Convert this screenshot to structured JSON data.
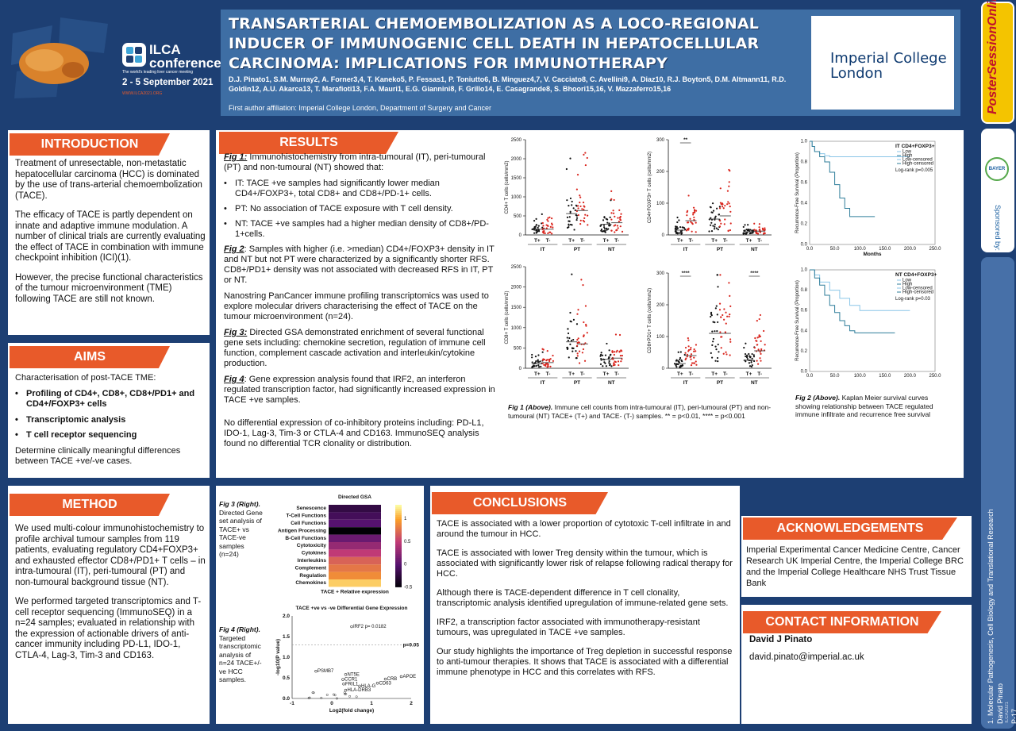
{
  "header": {
    "conference_name": "ILCA conference",
    "conference_tagline": "The world's leading liver cancer meeting",
    "conference_dates": "2 - 5 September 2021",
    "conference_web": "WWW.ILCA2021.ORG",
    "title": "TRANSARTERIAL CHEMOEMBOLIZATION AS A LOCO-REGIONAL INDUCER OF IMMUNOGENIC CELL DEATH IN HEPATOCELLULAR CARCINOMA: IMPLICATIONS FOR IMMUNOTHERAPY",
    "authors": "D.J. Pinato1, S.M. Murray2, A. Forner3,4, T. Kaneko5, P. Fessas1, P. Toniutto6, B. Minguez4,7, V. Cacciato8, C. Avellini9, A. Diaz10, R.J. Boyton5, D.M. Altmann11, R.D. Goldin12, A.U. Akarca13, T. Marafioti13, F.A. Mauri1, E.G. Giannini8, F. Grillo14, E. Casagrande8, S. Bhoori15,16, V. Mazzaferro15,16",
    "affiliation": "First author affiliation: Imperial College London, Department of Surgery and Cancer",
    "institution_line1": "Imperial College",
    "institution_line2": "London"
  },
  "side": {
    "brand": "PosterSessionOnline",
    "sponsor_label": "Sponsored by:",
    "sponsor_name": "BAYER",
    "track_line1": "1. Molecular Pathogenesis, Cell Biology and Translational Research",
    "track_line2": "David Pinato",
    "poster_id": "P-17",
    "event_code": "ILCA2021"
  },
  "introduction": {
    "heading": "INTRODUCTION",
    "p1": "Treatment of unresectable, non-metastatic hepatocellular carcinoma (HCC) is dominated by the use of trans-arterial chemoembolization (TACE).",
    "p2": "The efficacy of TACE is partly dependent on innate and adaptive immune modulation. A number of clinical trials are currently evaluating the effect of TACE in combination with immune checkpoint inhibition (ICI)(1).",
    "p3": "However, the precise functional characteristics of the tumour microenvironment (TME) following TACE are still not known."
  },
  "aims": {
    "heading": "AIMS",
    "intro": "Characterisation of post-TACE TME:",
    "items": [
      "Profiling of CD4+, CD8+, CD8+/PD1+ and CD4+/FOXP3+ cells",
      "Transcriptomic analysis",
      "T cell receptor sequencing"
    ],
    "outro": "Determine clinically meaningful differences between TACE +ve/-ve cases."
  },
  "method": {
    "heading": "METHOD",
    "p1": "We used multi-colour immunohistochemistry to profile archival tumour samples from 119 patients, evaluating regulatory CD4+FOXP3+ and exhausted effector CD8+/PD1+ T cells – in intra-tumoural (IT), peri-tumoural (PT) and non-tumoural background tissue (NT).",
    "p2": "We performed targeted transcriptomics and T-cell receptor sequencing (ImmunoSEQ) in a n=24 samples; evaluated in relationship with the expression of actionable drivers of anti-cancer immunity including PD-L1, IDO-1, CTLA-4, Lag-3, Tim-3 and CD163."
  },
  "results": {
    "heading": "RESULTS",
    "fig1_lead": "Fig 1:",
    "fig1_text": "Immunohistochemistry from intra-tumoural (IT), peri-tumoural (PT) and non-tumoural (NT) showed that:",
    "bullets": [
      "IT: TACE +ve samples had significantly lower median CD4+/FOXP3+, total CD8+ and CD8+/PD-1+ cells.",
      "PT: No association of TACE exposure with T cell density.",
      "NT: TACE +ve samples had a higher median density of CD8+/PD-1+cells."
    ],
    "fig2_lead": "Fig 2",
    "fig2_text": ": Samples with higher (i.e. >median) CD4+/FOXP3+ density in IT and NT but not PT were characterized by a significantly shorter RFS. CD8+/PD1+ density was not associated with decreased RFS in IT, PT or NT.",
    "nanostring": "Nanostring PanCancer immune profiling transcriptomics was used to explore molecular drivers characterising the effect of TACE on the tumour microenvironment (n=24).",
    "fig3_lead": "Fig 3:",
    "fig3_text": "Directed GSA demonstrated enrichment of several functional gene sets including: chemokine secretion, regulation of immune cell function, complement cascade activation and interleukin/cytokine production.",
    "fig4_lead": "Fig 4",
    "fig4_text": ": Gene expression analysis found that IRF2, an interferon regulated transcription factor, had significantly increased expression in TACE +ve samples.",
    "no_diff": "No differential expression of co-inhibitory proteins including: PD-L1, IDO-1, Lag-3, Tim-3 or CTLA-4 and CD163. ImmunoSEQ analysis found no differential TCR clonality or distribution.",
    "fig1_caption_lead": "Fig 1 (Above).",
    "fig1_caption": "Immune cell counts from intra-tumoural (IT), peri-tumoural (PT) and non-tumoural (NT) TACE+ (T+) and TACE- (T-) samples. ** = p<0.01, **** = p<0.001",
    "fig2_caption_lead": "Fig 2 (Above).",
    "fig2_caption": "Kaplan Meier survival curves showing relationship between TACE regulated immune infiltrate and recurrence free survival",
    "fig3_caption_lead": "Fig 3 (Right).",
    "fig3_caption": "Directed Gene set analysis of TACE+ vs TACE-ve samples (n=24)",
    "fig4_caption_lead": "Fig 4 (Right).",
    "fig4_caption": "Targeted transcriptomic analysis of n=24 TACE+/-ve HCC samples."
  },
  "conclusions": {
    "heading": "CONCLUSIONS",
    "p1": "TACE is associated with a lower proportion of cytotoxic T-cell infiltrate in and around the tumour in HCC.",
    "p2": "TACE is associated with lower Treg density within the tumour, which is associated with significantly lower risk of relapse following radical therapy for HCC.",
    "p3": "Although there is TACE-dependent difference in T cell clonality, transcriptomic analysis identified upregulation of immune-related gene sets.",
    "p4": "IRF2, a transcription factor associated with immunotherapy-resistant tumours, was upregulated in TACE +ve samples.",
    "p5": "Our study highlights the importance of Treg depletion in successful response to anti-tumour therapies. It shows that TACE is associated with a differential immune phenotype in HCC and this correlates with RFS."
  },
  "acknowledgements": {
    "heading": "ACKNOWLEDGEMENTS",
    "text": "Imperial Experimental Cancer Medicine Centre, Cancer Research UK Imperial Centre, the Imperial College BRC and the Imperial College Healthcare NHS Trust Tissue Bank"
  },
  "contact": {
    "heading": "CONTACT INFORMATION",
    "name": "David J Pinato",
    "email": "david.pinato@imperial.ac.uk"
  },
  "chart_data": [
    {
      "type": "scatter",
      "ylabel": "CD4+ T cells (cells/mm2)",
      "ylim": [
        0,
        2500
      ],
      "yticks": [
        0,
        500,
        1000,
        1500,
        2000,
        2500
      ],
      "groups": [
        "IT",
        "PT",
        "NT"
      ],
      "categories": [
        "T+",
        "T-",
        "T+",
        "T-",
        "T+",
        "T-"
      ],
      "medians": [
        150,
        150,
        560,
        640,
        280,
        320
      ],
      "series": [
        {
          "name": "T+",
          "color": "#111111"
        },
        {
          "name": "T-",
          "color": "#d9241c"
        }
      ]
    },
    {
      "type": "scatter",
      "ylabel": "CD4+FOXP3+ T cells (cells/mm2)",
      "ylim": [
        0,
        300
      ],
      "yticks": [
        0,
        100,
        200,
        300
      ],
      "groups": [
        "IT",
        "PT",
        "NT"
      ],
      "categories": [
        "T+",
        "T-",
        "T+",
        "T-",
        "T+",
        "T-"
      ],
      "medians": [
        15,
        45,
        50,
        60,
        10,
        12
      ],
      "annotations": [
        {
          "group": "IT",
          "text": "**"
        }
      ]
    },
    {
      "type": "scatter",
      "ylabel": "CD8+ T cells (cells/mm2)",
      "ylim": [
        0,
        2500
      ],
      "yticks": [
        0,
        500,
        1000,
        1500,
        2000,
        2500
      ],
      "groups": [
        "IT",
        "PT",
        "NT"
      ],
      "categories": [
        "T+",
        "T-",
        "T+",
        "T-",
        "T+",
        "T-"
      ],
      "medians": [
        110,
        140,
        650,
        600,
        220,
        250
      ]
    },
    {
      "type": "scatter",
      "ylabel": "CD8+PD1+ T cells (cells/mm2)",
      "ylim": [
        0,
        300
      ],
      "yticks": [
        0,
        100,
        200,
        300
      ],
      "groups": [
        "IT",
        "PT",
        "NT"
      ],
      "categories": [
        "T+",
        "T-",
        "T+",
        "T-",
        "T+",
        "T-"
      ],
      "medians": [
        15,
        40,
        110,
        110,
        25,
        55
      ],
      "annotations": [
        {
          "group": "IT",
          "text": "****"
        },
        {
          "group": "NT",
          "text": "****"
        }
      ]
    },
    {
      "type": "line",
      "title": "IT CD4+FOXP3+",
      "ylabel": "Recurrence-Free Survival (Proportion)",
      "xlabel": "Months",
      "xlim": [
        0,
        250
      ],
      "ylim": [
        0,
        1.0
      ],
      "legend": [
        "Low",
        "High",
        "Low-censored",
        "High-censored"
      ],
      "annotation": "Log-rank p=0.005",
      "series": [
        {
          "name": "Low",
          "x": [
            0,
            5,
            10,
            20,
            30,
            40,
            200
          ],
          "y": [
            1.0,
            0.95,
            0.9,
            0.88,
            0.86,
            0.85,
            0.85
          ]
        },
        {
          "name": "High",
          "x": [
            0,
            5,
            10,
            20,
            30,
            40,
            50,
            60,
            70,
            80,
            130
          ],
          "y": [
            1.0,
            0.95,
            0.9,
            0.85,
            0.8,
            0.7,
            0.58,
            0.45,
            0.35,
            0.27,
            0.27
          ]
        }
      ]
    },
    {
      "type": "line",
      "title": "NT CD4+FOXP3+",
      "ylabel": "Recurrence-Free Survival (Proportion)",
      "xlim": [
        0,
        250
      ],
      "ylim": [
        0,
        1.0
      ],
      "legend": [
        "Low",
        "High",
        "Low-censored",
        "High-censored"
      ],
      "annotation": "Log-rank p=0.03",
      "series": [
        {
          "name": "Low",
          "x": [
            0,
            10,
            20,
            40,
            60,
            80,
            100,
            120,
            200
          ],
          "y": [
            1.0,
            0.95,
            0.88,
            0.8,
            0.72,
            0.65,
            0.6,
            0.6,
            0.6
          ]
        },
        {
          "name": "High",
          "x": [
            0,
            10,
            20,
            30,
            40,
            50,
            60,
            70,
            80,
            90,
            170
          ],
          "y": [
            1.0,
            0.92,
            0.85,
            0.75,
            0.65,
            0.58,
            0.5,
            0.45,
            0.4,
            0.38,
            0.38
          ]
        }
      ]
    },
    {
      "type": "heatmap",
      "title": "Directed GSA",
      "xlabel": "TACE + Relative expression",
      "categories": [
        "Senescence",
        "T-Cell Functions",
        "Cell Functions",
        "Antigen Processing",
        "B-Cell Functions",
        "Cytotoxicity",
        "Cytokines",
        "Interleukins",
        "Complement",
        "Regulation",
        "Chemokines"
      ],
      "values": [
        -0.2,
        -0.1,
        0.0,
        -0.5,
        0.1,
        0.3,
        0.5,
        0.7,
        0.8,
        0.9,
        1.15
      ],
      "colorbar": [
        -0.5,
        0,
        0.5,
        1.0
      ]
    },
    {
      "type": "scatter",
      "title": "TACE +ve vs -ve Differential Gene Expression",
      "xlabel": "Log2(fold change)",
      "ylabel": "-log10(P value)",
      "xlim": [
        -1,
        2
      ],
      "ylim": [
        0,
        2.0
      ],
      "threshold": {
        "label": "p=0.05",
        "y": 1.3
      },
      "points": [
        {
          "label": "IRF2 p= 0.0182",
          "x": 0.5,
          "y": 1.74
        },
        {
          "label": "PSMB7",
          "x": -0.4,
          "y": 0.66
        },
        {
          "label": "NT5E",
          "x": 0.35,
          "y": 0.58
        },
        {
          "label": "APOE",
          "x": 1.75,
          "y": 0.53
        },
        {
          "label": "CRB",
          "x": 1.35,
          "y": 0.47
        },
        {
          "label": "CCR1",
          "x": 0.28,
          "y": 0.46
        },
        {
          "label": "CD63",
          "x": 1.15,
          "y": 0.37
        },
        {
          "label": "FRIL1",
          "x": 0.3,
          "y": 0.35
        },
        {
          "label": "HLA-G",
          "x": 0.7,
          "y": 0.3
        },
        {
          "label": "HLA-DRB3",
          "x": 0.35,
          "y": 0.2
        }
      ]
    }
  ]
}
